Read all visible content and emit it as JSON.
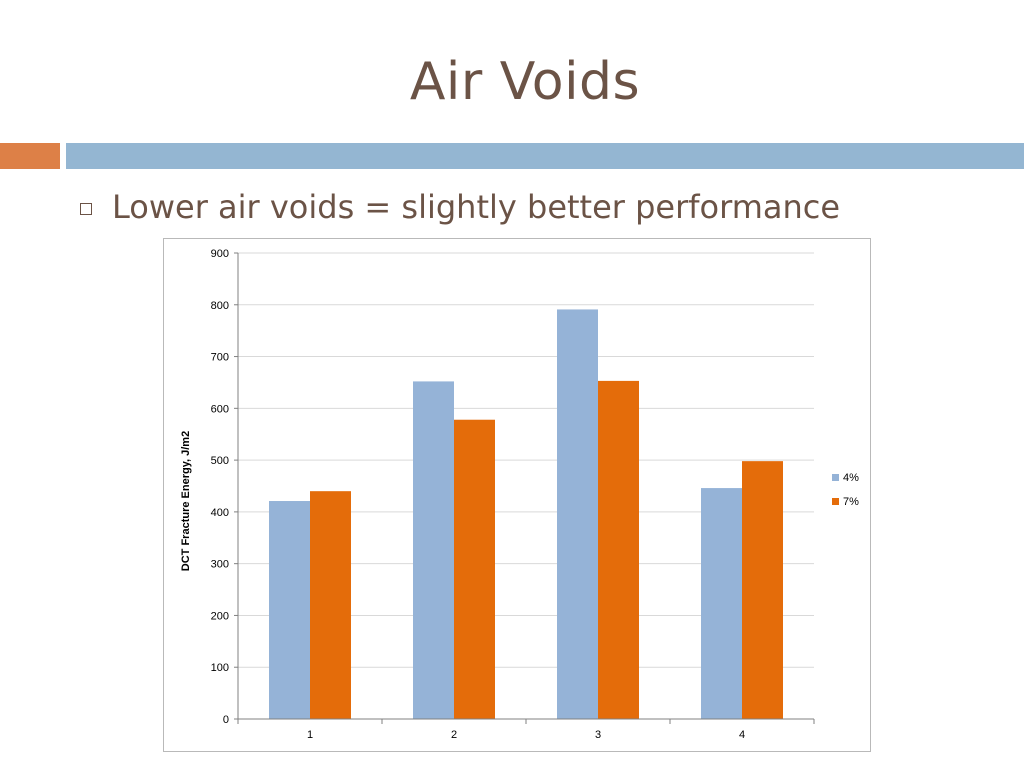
{
  "slide": {
    "title": "Air Voids",
    "bullet": "Lower air voids = slightly better performance"
  },
  "colors": {
    "title_text": "#6b5346",
    "accent_orange": "#dd8047",
    "accent_blue": "#94b6d2",
    "series_4": "#95b3d7",
    "series_7": "#e46c0a"
  },
  "chart_data": {
    "type": "bar",
    "categories": [
      "1",
      "2",
      "3",
      "4"
    ],
    "series": [
      {
        "name": "4%",
        "values": [
          421,
          652,
          791,
          446
        ]
      },
      {
        "name": "7%",
        "values": [
          440,
          578,
          653,
          498
        ]
      }
    ],
    "title": "",
    "xlabel": "",
    "ylabel": "DCT Fracture Energy, J/m2",
    "ylim": [
      0,
      900
    ],
    "yticks": [
      0,
      100,
      200,
      300,
      400,
      500,
      600,
      700,
      800,
      900
    ],
    "grid": true,
    "legend": "right"
  }
}
